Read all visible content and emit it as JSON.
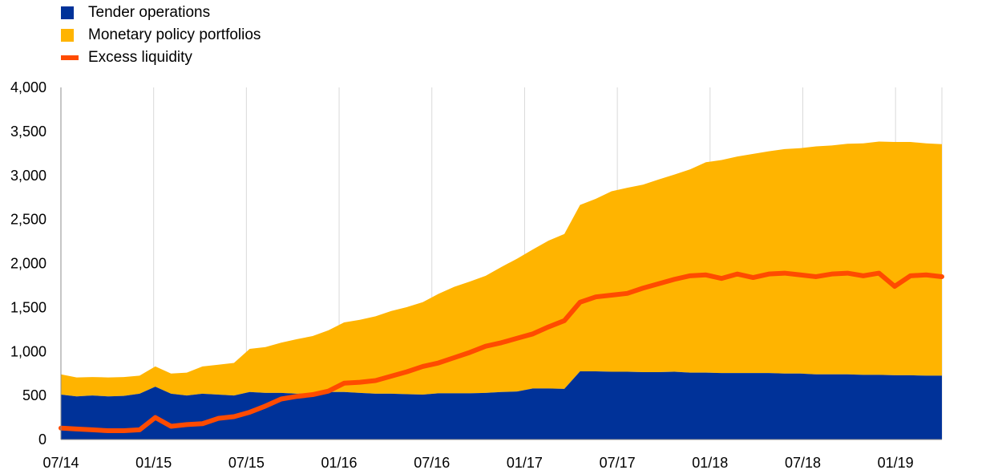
{
  "chart_data": {
    "type": "area",
    "title": "",
    "xlabel": "",
    "ylabel": "",
    "ylim": [
      0,
      4000
    ],
    "yticks": [
      0,
      500,
      1000,
      1500,
      2000,
      2500,
      3000,
      3500,
      4000
    ],
    "ytick_labels": [
      "0",
      "500",
      "1,000",
      "1,500",
      "2,000",
      "2,500",
      "3,000",
      "3,500",
      "4,000"
    ],
    "xlim": [
      "2014-07",
      "2019-04"
    ],
    "xtick_labels": [
      "07/14",
      "01/15",
      "07/15",
      "01/16",
      "07/16",
      "01/17",
      "07/17",
      "01/18",
      "07/18",
      "01/19"
    ],
    "grid": "vertical",
    "legend_position": "top-left",
    "x": [
      "2014-07",
      "2014-08",
      "2014-09",
      "2014-10",
      "2014-11",
      "2014-12",
      "2015-01",
      "2015-02",
      "2015-03",
      "2015-04",
      "2015-05",
      "2015-06",
      "2015-07",
      "2015-08",
      "2015-09",
      "2015-10",
      "2015-11",
      "2015-12",
      "2016-01",
      "2016-02",
      "2016-03",
      "2016-04",
      "2016-05",
      "2016-06",
      "2016-07",
      "2016-08",
      "2016-09",
      "2016-10",
      "2016-11",
      "2016-12",
      "2017-01",
      "2017-02",
      "2017-03",
      "2017-04",
      "2017-05",
      "2017-06",
      "2017-07",
      "2017-08",
      "2017-09",
      "2017-10",
      "2017-11",
      "2017-12",
      "2018-01",
      "2018-02",
      "2018-03",
      "2018-04",
      "2018-05",
      "2018-06",
      "2018-07",
      "2018-08",
      "2018-09",
      "2018-10",
      "2018-11",
      "2018-12",
      "2019-01",
      "2019-02",
      "2019-03"
    ],
    "series": [
      {
        "name": "Tender operations",
        "type": "area",
        "color": "#003299",
        "values": [
          510,
          490,
          500,
          490,
          495,
          520,
          600,
          520,
          500,
          520,
          510,
          500,
          540,
          530,
          530,
          520,
          525,
          540,
          540,
          530,
          520,
          520,
          515,
          510,
          525,
          525,
          525,
          530,
          540,
          545,
          580,
          580,
          575,
          775,
          775,
          770,
          770,
          765,
          765,
          770,
          760,
          760,
          755,
          755,
          755,
          755,
          750,
          750,
          740,
          740,
          740,
          735,
          735,
          730,
          730,
          725,
          725
        ]
      },
      {
        "name": "Monetary policy portfolios",
        "type": "area",
        "stack": "total",
        "color": "#FFB400",
        "values": [
          230,
          215,
          210,
          215,
          215,
          205,
          230,
          230,
          260,
          310,
          340,
          370,
          490,
          520,
          570,
          620,
          650,
          700,
          790,
          830,
          880,
          940,
          990,
          1050,
          1130,
          1210,
          1270,
          1330,
          1420,
          1510,
          1580,
          1680,
          1760,
          1890,
          1960,
          2050,
          2090,
          2130,
          2190,
          2240,
          2310,
          2390,
          2420,
          2460,
          2490,
          2520,
          2550,
          2560,
          2590,
          2600,
          2620,
          2630,
          2650,
          2650,
          2650,
          2640,
          2630
        ]
      },
      {
        "name": "Excess liquidity",
        "type": "line",
        "color": "#FF4B00",
        "values": [
          130,
          120,
          110,
          100,
          100,
          110,
          250,
          150,
          170,
          180,
          240,
          260,
          310,
          380,
          460,
          490,
          510,
          550,
          640,
          650,
          670,
          720,
          770,
          830,
          870,
          930,
          990,
          1060,
          1100,
          1150,
          1200,
          1280,
          1350,
          1560,
          1620,
          1640,
          1660,
          1720,
          1770,
          1820,
          1860,
          1870,
          1830,
          1880,
          1840,
          1880,
          1890,
          1870,
          1850,
          1880,
          1890,
          1860,
          1890,
          1740,
          1860,
          1870,
          1850
        ]
      }
    ]
  }
}
